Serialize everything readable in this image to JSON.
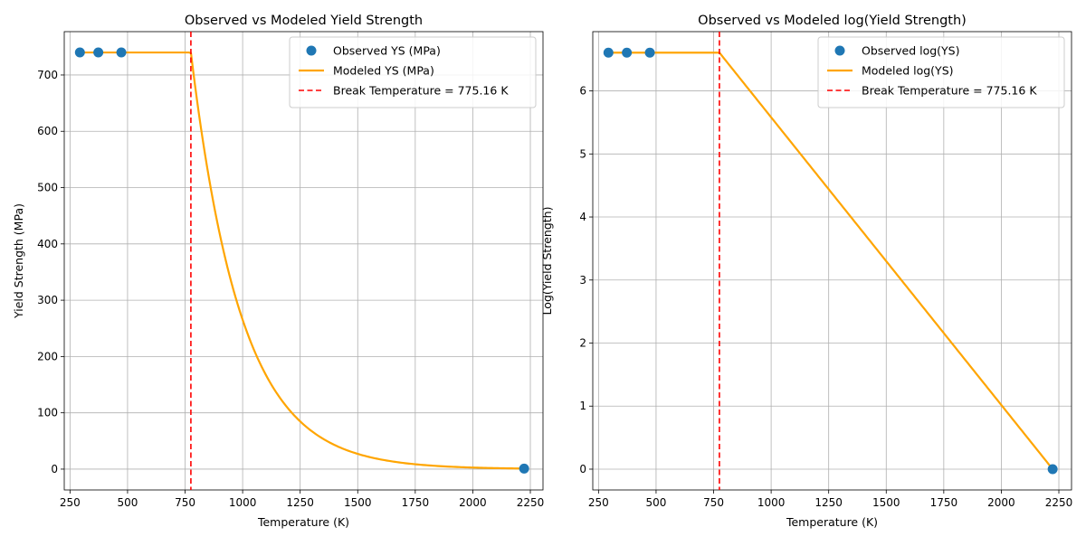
{
  "chart_data": [
    {
      "type": "line",
      "title": "Observed vs Modeled Yield Strength",
      "xlabel": "Temperature (K)",
      "ylabel": "Yield Strength (MPa)",
      "xlim": [
        225,
        2305
      ],
      "ylim": [
        -37,
        777
      ],
      "xticks": [
        250,
        500,
        750,
        1000,
        1250,
        1500,
        1750,
        2000,
        2250
      ],
      "yticks": [
        0,
        100,
        200,
        300,
        400,
        500,
        600,
        700
      ],
      "grid": true,
      "legend_position": "top-right",
      "observed": {
        "name": "Observed YS (MPa)",
        "color": "#1f77b4",
        "x": [
          293,
          373,
          473,
          2223
        ],
        "y": [
          740,
          740,
          740,
          1
        ]
      },
      "modeled": {
        "name": "Modeled YS (MPa)",
        "color": "#ffa500",
        "model": "exp",
        "plateau": 740,
        "break": 775.16,
        "x_start": 293,
        "x_end": 2223,
        "end_value": 1
      },
      "break_line": {
        "name": "Break Temperature = 775.16 K",
        "x": 775.16,
        "color": "#ff0000"
      }
    },
    {
      "type": "line",
      "title": "Observed vs Modeled log(Yield Strength)",
      "xlabel": "Temperature (K)",
      "ylabel": "Log(Yield Strength)",
      "xlim": [
        225,
        2305
      ],
      "ylim": [
        -0.33,
        6.94
      ],
      "xticks": [
        250,
        500,
        750,
        1000,
        1250,
        1500,
        1750,
        2000,
        2250
      ],
      "yticks": [
        0,
        1,
        2,
        3,
        4,
        5,
        6
      ],
      "grid": true,
      "legend_position": "top-right",
      "observed": {
        "name": "Observed log(YS)",
        "color": "#1f77b4",
        "x": [
          293,
          373,
          473,
          2223
        ],
        "y": [
          6.607,
          6.607,
          6.607,
          0
        ]
      },
      "modeled": {
        "name": "Modeled log(YS)",
        "color": "#ffa500",
        "model": "linear",
        "plateau": 6.607,
        "break": 775.16,
        "x_start": 293,
        "x_end": 2223,
        "end_value": 0
      },
      "break_line": {
        "name": "Break Temperature = 775.16 K",
        "x": 775.16,
        "color": "#ff0000"
      }
    }
  ]
}
